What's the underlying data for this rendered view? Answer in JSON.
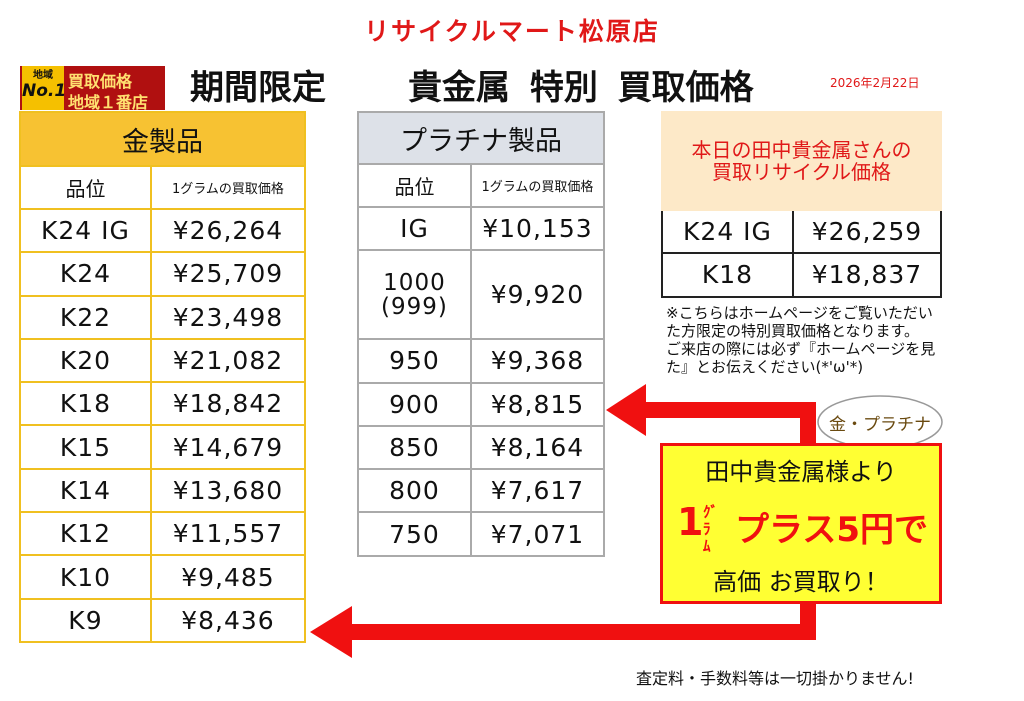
{
  "header": {
    "store": "リサイクルマート松原店",
    "title_left": "期間限定",
    "title_right": "貴金属 特別 買取価格",
    "date": "2026年2月22日"
  },
  "badge": {
    "area": "地域",
    "rank": "No.1",
    "line1": "買取価格",
    "line2": "地域１番店"
  },
  "gold": {
    "title": "金製品",
    "columns": [
      "品位",
      "1グラムの買取価格"
    ],
    "rows": [
      [
        "K24 IG",
        "¥26,264"
      ],
      [
        "K24",
        "¥25,709"
      ],
      [
        "K22",
        "¥23,498"
      ],
      [
        "K20",
        "¥21,082"
      ],
      [
        "K18",
        "¥18,842"
      ],
      [
        "K15",
        "¥14,679"
      ],
      [
        "K14",
        "¥13,680"
      ],
      [
        "K12",
        "¥11,557"
      ],
      [
        "K10",
        "¥9,485"
      ],
      [
        "K9",
        "¥8,436"
      ]
    ]
  },
  "platinum": {
    "title": "プラチナ製品",
    "columns": [
      "品位",
      "1グラムの買取価格"
    ],
    "rows": [
      [
        "IG",
        "¥10,153"
      ],
      [
        "1000\n(999)",
        "¥9,920"
      ],
      [
        "950",
        "¥9,368"
      ],
      [
        "900",
        "¥8,815"
      ],
      [
        "850",
        "¥8,164"
      ],
      [
        "800",
        "¥7,617"
      ],
      [
        "750",
        "¥7,071"
      ]
    ]
  },
  "tanaka": {
    "title": "本日の田中貴金属さんの\n買取リサイクル価格",
    "rows": [
      [
        "K24 IG",
        "¥26,259"
      ],
      [
        "K18",
        "¥18,837"
      ]
    ]
  },
  "note": "※こちらはホームページをご覧いただいた方限定の特別買取価格となります。\nご来店の際には必ず『ホームページを見た』とお伝えください(*'ω'*)",
  "promo": {
    "bubble": "金・プラチナ",
    "line1": "田中貴金属様より",
    "number": "1",
    "unit": "ｸﾞﾗ\nﾑ",
    "plus": "プラス5円で",
    "line3": "高価 お買取り！"
  },
  "footer": "査定料・手数料等は一切掛かりません!"
}
